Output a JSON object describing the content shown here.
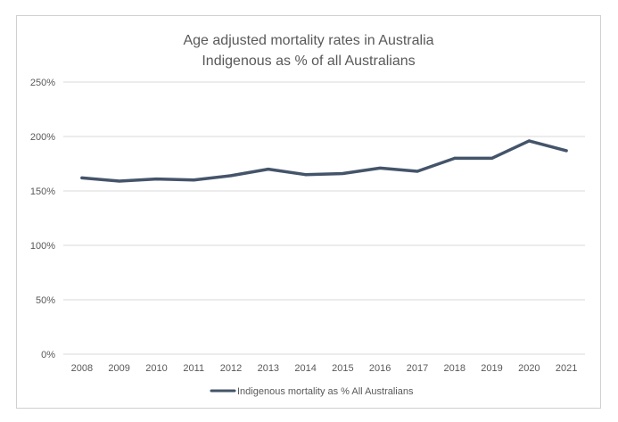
{
  "chart_data": {
    "type": "line",
    "title": [
      "Age adjusted mortality rates in Australia",
      "Indigenous as % of all Australians"
    ],
    "xlabel": "",
    "ylabel": "",
    "ylim": [
      0,
      250
    ],
    "yticks": [
      0,
      50,
      100,
      150,
      200,
      250
    ],
    "ytick_labels": [
      "0%",
      "50%",
      "100%",
      "150%",
      "200%",
      "250%"
    ],
    "categories": [
      "2008",
      "2009",
      "2010",
      "2011",
      "2012",
      "2013",
      "2014",
      "2015",
      "2016",
      "2017",
      "2018",
      "2019",
      "2020",
      "2021"
    ],
    "series": [
      {
        "name": "Indigenous mortality as % All Australians",
        "values": [
          162,
          159,
          161,
          160,
          164,
          170,
          165,
          166,
          171,
          168,
          180,
          180,
          196,
          187
        ]
      }
    ],
    "grid": true,
    "legend_position": "bottom"
  },
  "colors": {
    "line": "#44546a",
    "grid": "#d9d9d9",
    "text": "#595959",
    "title": "#595959"
  }
}
